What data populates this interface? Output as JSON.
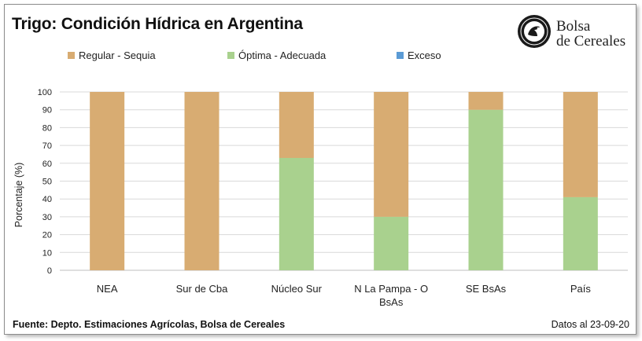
{
  "header": {
    "title": "Trigo: Condición Hídrica en Argentina",
    "logo_text_line1": "Bolsa",
    "logo_text_line2": "de Cereales"
  },
  "legend": [
    {
      "label": "Regular - Sequia",
      "color": "#d8ac72"
    },
    {
      "label": "Óptima - Adecuada",
      "color": "#a9d18e"
    },
    {
      "label": "Exceso",
      "color": "#5b9bd5"
    }
  ],
  "footer": {
    "source": "Fuente: Depto. Estimaciones Agrícolas, Bolsa de Cereales",
    "date": "Datos al 23-09-20"
  },
  "chart_data": {
    "type": "bar",
    "stacked": true,
    "categories": [
      "NEA",
      "Sur de Cba",
      "Núcleo Sur",
      "N La Pampa - O BsAs",
      "SE BsAs",
      "País"
    ],
    "category_lines": [
      [
        "NEA"
      ],
      [
        "Sur de Cba"
      ],
      [
        "Núcleo Sur"
      ],
      [
        "N La Pampa - O",
        "BsAs"
      ],
      [
        "SE BsAs"
      ],
      [
        "País"
      ]
    ],
    "series": [
      {
        "name": "Óptima - Adecuada",
        "color": "#a9d18e",
        "values": [
          0,
          0,
          63,
          30,
          90,
          41
        ]
      },
      {
        "name": "Regular - Sequia",
        "color": "#d8ac72",
        "values": [
          100,
          100,
          37,
          70,
          10,
          59
        ]
      },
      {
        "name": "Exceso",
        "color": "#5b9bd5",
        "values": [
          0,
          0,
          0,
          0,
          0,
          0
        ]
      }
    ],
    "title": "Trigo: Condición Hídrica en Argentina",
    "xlabel": "",
    "ylabel": "Porcentaje (%)",
    "ylim": [
      0,
      100
    ],
    "yticks": [
      "0",
      "10",
      "20",
      "30",
      "40",
      "50",
      "60",
      "70",
      "80",
      "90",
      "100"
    ],
    "grid": true
  }
}
